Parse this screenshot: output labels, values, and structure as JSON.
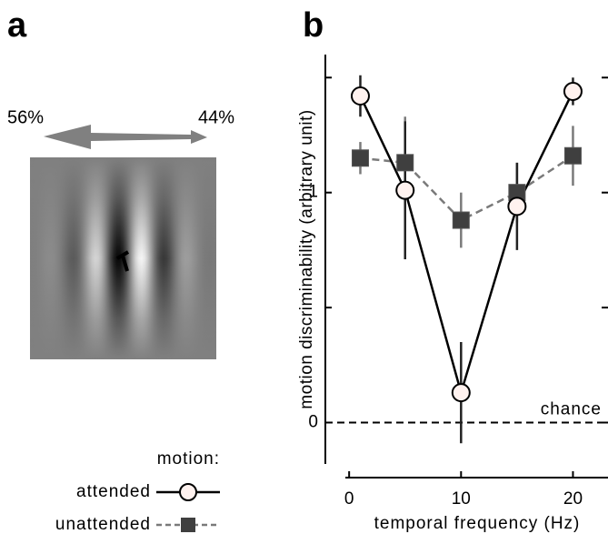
{
  "panel_a": {
    "label": "a",
    "left_text": "56%",
    "right_text": "44%"
  },
  "chart_data": {
    "type": "line",
    "panel_label": "b",
    "xlabel": "temporal frequency (Hz)",
    "ylabel": "motion discriminability (arbitrary unit)",
    "x": [
      1,
      5,
      10,
      15,
      20
    ],
    "xlim": [
      -1.8,
      22.4
    ],
    "xticks": [
      0,
      10,
      20
    ],
    "ylim": [
      -0.18,
      1.6
    ],
    "yticks": [
      0,
      1
    ],
    "yminorticks": [
      0.5,
      1.5
    ],
    "legend_title": "motion:",
    "reference_line": {
      "value": 0,
      "label": "chance"
    },
    "series": [
      {
        "name": "unattended",
        "color": "#7a7a7a",
        "marker_color": "#3f3f3f",
        "marker": "square",
        "dashed": true,
        "values": [
          1.15,
          1.13,
          0.88,
          1.0,
          1.16
        ],
        "errors": [
          0.07,
          0.2,
          0.12,
          0.13,
          0.13
        ]
      },
      {
        "name": "attended",
        "color": "#000000",
        "marker_color": "#fff2ef",
        "marker": "circle",
        "dashed": false,
        "values": [
          1.42,
          1.01,
          0.13,
          0.94,
          1.44
        ],
        "errors": [
          0.09,
          0.3,
          0.22,
          0.19,
          0.06
        ]
      }
    ]
  }
}
